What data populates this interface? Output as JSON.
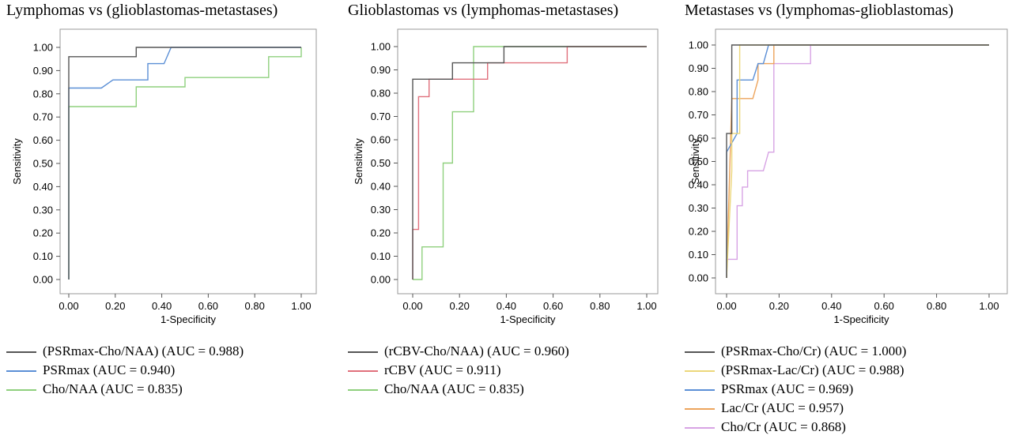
{
  "chart_data": [
    {
      "type": "line",
      "title": "Lymphomas vs (glioblastomas-metastases)",
      "xlabel": "1-Specificity",
      "ylabel": "Sensitivity",
      "xlim": [
        0,
        1
      ],
      "ylim": [
        0,
        1
      ],
      "xticks": [
        "0.00",
        "0.20",
        "0.40",
        "0.60",
        "0.80",
        "1.00"
      ],
      "yticks": [
        "0.00",
        "0.10",
        "0.20",
        "0.30",
        "0.40",
        "0.50",
        "0.60",
        "0.70",
        "0.80",
        "0.90",
        "1.00"
      ],
      "grid": false,
      "legend_position": "bottom",
      "series": [
        {
          "label": "(PSRmax-Cho/NAA) (AUC = 0.988)",
          "color": "#555555",
          "x": [
            0,
            0,
            0.29,
            0.29,
            1
          ],
          "y": [
            0,
            0.96,
            0.96,
            1.0,
            1.0
          ]
        },
        {
          "label": "PSRmax (AUC = 0.940)",
          "color": "#5b8fd6",
          "x": [
            0,
            0,
            0.14,
            0.19,
            0.34,
            0.34,
            0.41,
            0.44,
            1
          ],
          "y": [
            0,
            0.825,
            0.825,
            0.86,
            0.86,
            0.93,
            0.93,
            1.0,
            1.0
          ]
        },
        {
          "label": "Cho/NAA (AUC = 0.835)",
          "color": "#8fd07d",
          "x": [
            0,
            0,
            0.29,
            0.29,
            0.5,
            0.5,
            0.86,
            0.86,
            1,
            1
          ],
          "y": [
            0,
            0.745,
            0.745,
            0.83,
            0.83,
            0.87,
            0.87,
            0.96,
            0.96,
            1.0
          ]
        }
      ]
    },
    {
      "type": "line",
      "title": "Glioblastomas vs (lymphomas-metastases)",
      "xlabel": "1-Specificity",
      "ylabel": "Sensitivity",
      "xlim": [
        0,
        1
      ],
      "ylim": [
        0,
        1
      ],
      "xticks": [
        "0.00",
        "0.20",
        "0.40",
        "0.60",
        "0.80",
        "1.00"
      ],
      "yticks": [
        "0.00",
        "0.10",
        "0.20",
        "0.30",
        "0.40",
        "0.50",
        "0.60",
        "0.70",
        "0.80",
        "0.90",
        "1.00"
      ],
      "grid": false,
      "legend_position": "bottom",
      "series": [
        {
          "label": "(rCBV-Cho/NAA) (AUC = 0.960)",
          "color": "#555555",
          "x": [
            0,
            0,
            0.17,
            0.17,
            0.39,
            0.39,
            1
          ],
          "y": [
            0,
            0.86,
            0.86,
            0.93,
            0.93,
            1.0,
            1.0
          ]
        },
        {
          "label": "rCBV (AUC = 0.911)",
          "color": "#e0707c",
          "x": [
            0,
            0,
            0.025,
            0.025,
            0.07,
            0.07,
            0.32,
            0.32,
            0.66,
            0.66,
            1
          ],
          "y": [
            0,
            0.215,
            0.215,
            0.785,
            0.785,
            0.86,
            0.86,
            0.93,
            0.93,
            1.0,
            1.0
          ]
        },
        {
          "label": "Cho/NAA (AUC = 0.835)",
          "color": "#8fd07d",
          "x": [
            0,
            0.04,
            0.04,
            0.13,
            0.13,
            0.17,
            0.17,
            0.2,
            0.2,
            0.26,
            0.26,
            1
          ],
          "y": [
            0,
            0,
            0.14,
            0.14,
            0.5,
            0.5,
            0.72,
            0.72,
            0.72,
            0.72,
            1.0,
            1.0
          ]
        }
      ]
    },
    {
      "type": "line",
      "title": "Metastases vs (lymphomas-glioblastomas)",
      "xlabel": "1-Specificity",
      "ylabel": "Sensitivity",
      "xlim": [
        0,
        1
      ],
      "ylim": [
        0,
        1
      ],
      "xticks": [
        "0.00",
        "0.20",
        "0.40",
        "0.60",
        "0.80",
        "1.00"
      ],
      "yticks": [
        "0.00",
        "0.10",
        "0.20",
        "0.30",
        "0.40",
        "0.50",
        "0.60",
        "0.70",
        "0.80",
        "0.90",
        "1.00"
      ],
      "grid": false,
      "legend_position": "bottom",
      "series": [
        {
          "label": "(PSRmax-Cho/Cr) (AUC = 1.000)",
          "color": "#555555",
          "x": [
            0,
            0,
            0.02,
            0.02,
            1
          ],
          "y": [
            0,
            0.62,
            0.62,
            1.0,
            1.0
          ]
        },
        {
          "label": "(PSRmax-Lac/Cr) (AUC = 0.988)",
          "color": "#ecd77a",
          "x": [
            0,
            0.02,
            0.02,
            0.05,
            0.05,
            1
          ],
          "y": [
            0,
            0.46,
            0.62,
            0.62,
            1.0,
            1.0
          ]
        },
        {
          "label": "PSRmax (AUC = 0.969)",
          "color": "#5b8fd6",
          "x": [
            0,
            0,
            0.04,
            0.04,
            0.08,
            0.08,
            0.1,
            0.12,
            0.14,
            0.16,
            0.16,
            1
          ],
          "y": [
            0,
            0.54,
            0.62,
            0.85,
            0.85,
            0.85,
            0.85,
            0.92,
            0.92,
            1.0,
            1.0,
            1.0
          ]
        },
        {
          "label": "Lac/Cr (AUC = 0.957)",
          "color": "#eda45c",
          "x": [
            0,
            0.02,
            0.02,
            0.08,
            0.08,
            0.1,
            0.12,
            0.12,
            0.16,
            0.18,
            0.18,
            1
          ],
          "y": [
            0,
            0.77,
            0.77,
            0.77,
            0.77,
            0.77,
            0.85,
            0.92,
            0.92,
            0.92,
            1.0,
            1.0
          ]
        },
        {
          "label": "Cho/Cr (AUC = 0.868)",
          "color": "#d7a3e4",
          "x": [
            0,
            0,
            0.04,
            0.04,
            0.06,
            0.06,
            0.08,
            0.08,
            0.12,
            0.12,
            0.14,
            0.16,
            0.16,
            0.18,
            0.18,
            0.32,
            0.32,
            1
          ],
          "y": [
            0,
            0.08,
            0.08,
            0.31,
            0.31,
            0.39,
            0.39,
            0.46,
            0.46,
            0.46,
            0.46,
            0.54,
            0.54,
            0.54,
            0.92,
            0.92,
            1.0,
            1.0
          ]
        }
      ]
    }
  ]
}
